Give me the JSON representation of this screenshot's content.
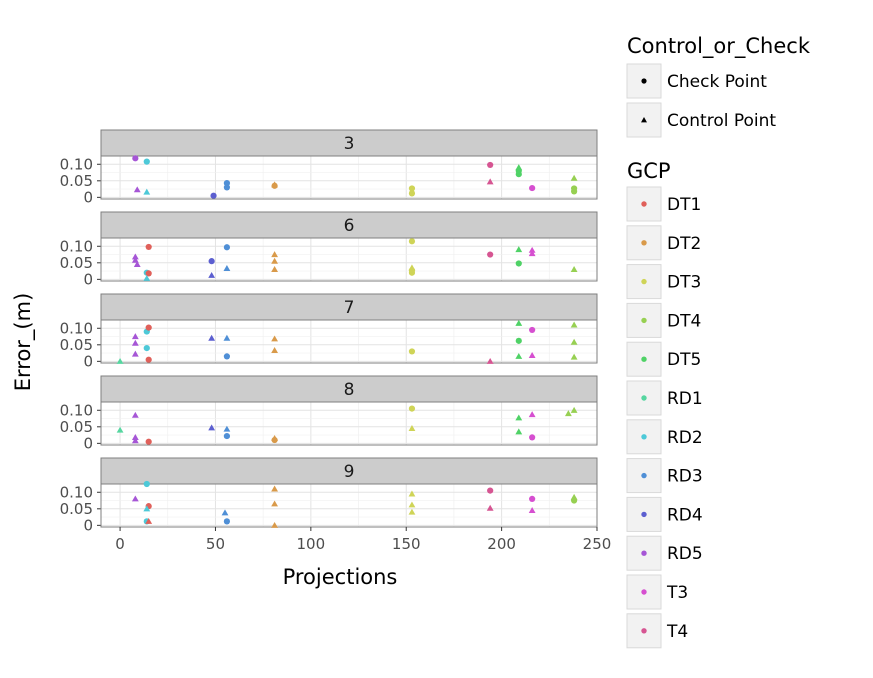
{
  "chart_data": {
    "type": "scatter",
    "facet_by": "GCP",
    "xlabel": "Projections",
    "ylabel": "Error_(m)",
    "xlim": [
      -10,
      250
    ],
    "ylim": [
      -0.005,
      0.125
    ],
    "x_ticks": [
      0,
      50,
      100,
      150,
      200,
      250
    ],
    "y_ticks": [
      0,
      0.05,
      0.1
    ],
    "y_tick_labels": [
      "0",
      "0.05",
      "0.10"
    ],
    "grid": true,
    "legend": {
      "placement": "right",
      "shape_title": "Control_or_Check",
      "shapes": [
        {
          "label": "Check Point",
          "shape": "circle"
        },
        {
          "label": "Control Point",
          "shape": "triangle"
        }
      ],
      "color_title": "GCP",
      "colors": [
        {
          "label": "DT1",
          "color": "#e0605a"
        },
        {
          "label": "DT2",
          "color": "#d99a4a"
        },
        {
          "label": "DT3",
          "color": "#cfd457"
        },
        {
          "label": "DT4",
          "color": "#97d052"
        },
        {
          "label": "DT5",
          "color": "#4fd266"
        },
        {
          "label": "RD1",
          "color": "#56d6a0"
        },
        {
          "label": "RD2",
          "color": "#4dc9d8"
        },
        {
          "label": "RD3",
          "color": "#4f8fd6"
        },
        {
          "label": "RD4",
          "color": "#5c5fd0"
        },
        {
          "label": "RD5",
          "color": "#a656d6"
        },
        {
          "label": "T3",
          "color": "#d64fd0"
        },
        {
          "label": "T4",
          "color": "#d65592"
        }
      ]
    },
    "panels": [
      {
        "label": "3",
        "points": [
          {
            "x": 8,
            "y": 0.118,
            "gcp": "RD5",
            "type": "Check Point"
          },
          {
            "x": 14,
            "y": 0.108,
            "gcp": "RD2",
            "type": "Check Point"
          },
          {
            "x": 9,
            "y": 0.023,
            "gcp": "RD5",
            "type": "Control Point"
          },
          {
            "x": 14,
            "y": 0.016,
            "gcp": "RD2",
            "type": "Control Point"
          },
          {
            "x": 49,
            "y": 0.005,
            "gcp": "RD4",
            "type": "Check Point"
          },
          {
            "x": 56,
            "y": 0.043,
            "gcp": "RD3",
            "type": "Check Point"
          },
          {
            "x": 56,
            "y": 0.03,
            "gcp": "RD3",
            "type": "Check Point"
          },
          {
            "x": 81,
            "y": 0.035,
            "gcp": "DT2",
            "type": "Check Point"
          },
          {
            "x": 81,
            "y": 0.038,
            "gcp": "DT2",
            "type": "Control Point"
          },
          {
            "x": 153,
            "y": 0.027,
            "gcp": "DT3",
            "type": "Check Point"
          },
          {
            "x": 153,
            "y": 0.012,
            "gcp": "DT3",
            "type": "Check Point"
          },
          {
            "x": 194,
            "y": 0.098,
            "gcp": "T4",
            "type": "Check Point"
          },
          {
            "x": 194,
            "y": 0.047,
            "gcp": "T4",
            "type": "Control Point"
          },
          {
            "x": 209,
            "y": 0.09,
            "gcp": "DT5",
            "type": "Control Point"
          },
          {
            "x": 209,
            "y": 0.08,
            "gcp": "DT5",
            "type": "Check Point"
          },
          {
            "x": 209,
            "y": 0.07,
            "gcp": "DT5",
            "type": "Check Point"
          },
          {
            "x": 216,
            "y": 0.028,
            "gcp": "T3",
            "type": "Check Point"
          },
          {
            "x": 238,
            "y": 0.058,
            "gcp": "DT4",
            "type": "Control Point"
          },
          {
            "x": 238,
            "y": 0.027,
            "gcp": "DT4",
            "type": "Check Point"
          },
          {
            "x": 238,
            "y": 0.018,
            "gcp": "DT4",
            "type": "Check Point"
          }
        ]
      },
      {
        "label": "6",
        "points": [
          {
            "x": 8,
            "y": 0.068,
            "gcp": "RD5",
            "type": "Control Point"
          },
          {
            "x": 8,
            "y": 0.058,
            "gcp": "RD5",
            "type": "Control Point"
          },
          {
            "x": 9,
            "y": 0.045,
            "gcp": "RD5",
            "type": "Control Point"
          },
          {
            "x": 15,
            "y": 0.098,
            "gcp": "DT1",
            "type": "Check Point"
          },
          {
            "x": 14,
            "y": 0.02,
            "gcp": "RD2",
            "type": "Check Point"
          },
          {
            "x": 15,
            "y": 0.018,
            "gcp": "DT1",
            "type": "Check Point"
          },
          {
            "x": 14,
            "y": 0.003,
            "gcp": "RD2",
            "type": "Control Point"
          },
          {
            "x": 48,
            "y": 0.055,
            "gcp": "RD4",
            "type": "Check Point"
          },
          {
            "x": 48,
            "y": 0.012,
            "gcp": "RD4",
            "type": "Control Point"
          },
          {
            "x": 56,
            "y": 0.097,
            "gcp": "RD3",
            "type": "Check Point"
          },
          {
            "x": 56,
            "y": 0.033,
            "gcp": "RD3",
            "type": "Control Point"
          },
          {
            "x": 81,
            "y": 0.075,
            "gcp": "DT2",
            "type": "Control Point"
          },
          {
            "x": 81,
            "y": 0.055,
            "gcp": "DT2",
            "type": "Control Point"
          },
          {
            "x": 81,
            "y": 0.03,
            "gcp": "DT2",
            "type": "Control Point"
          },
          {
            "x": 153,
            "y": 0.115,
            "gcp": "DT3",
            "type": "Check Point"
          },
          {
            "x": 153,
            "y": 0.035,
            "gcp": "DT3",
            "type": "Control Point"
          },
          {
            "x": 153,
            "y": 0.027,
            "gcp": "DT3",
            "type": "Check Point"
          },
          {
            "x": 153,
            "y": 0.02,
            "gcp": "DT3",
            "type": "Check Point"
          },
          {
            "x": 194,
            "y": 0.075,
            "gcp": "T4",
            "type": "Check Point"
          },
          {
            "x": 209,
            "y": 0.09,
            "gcp": "DT5",
            "type": "Control Point"
          },
          {
            "x": 209,
            "y": 0.048,
            "gcp": "DT5",
            "type": "Check Point"
          },
          {
            "x": 216,
            "y": 0.088,
            "gcp": "T3",
            "type": "Control Point"
          },
          {
            "x": 216,
            "y": 0.078,
            "gcp": "T3",
            "type": "Control Point"
          },
          {
            "x": 238,
            "y": 0.03,
            "gcp": "DT4",
            "type": "Control Point"
          }
        ]
      },
      {
        "label": "7",
        "points": [
          {
            "x": 0,
            "y": 0.0,
            "gcp": "RD1",
            "type": "Control Point"
          },
          {
            "x": 8,
            "y": 0.075,
            "gcp": "RD5",
            "type": "Control Point"
          },
          {
            "x": 8,
            "y": 0.055,
            "gcp": "RD5",
            "type": "Control Point"
          },
          {
            "x": 8,
            "y": 0.022,
            "gcp": "RD5",
            "type": "Control Point"
          },
          {
            "x": 14,
            "y": 0.09,
            "gcp": "RD2",
            "type": "Check Point"
          },
          {
            "x": 15,
            "y": 0.102,
            "gcp": "DT1",
            "type": "Check Point"
          },
          {
            "x": 14,
            "y": 0.04,
            "gcp": "RD2",
            "type": "Check Point"
          },
          {
            "x": 15,
            "y": 0.005,
            "gcp": "DT1",
            "type": "Check Point"
          },
          {
            "x": 48,
            "y": 0.07,
            "gcp": "RD4",
            "type": "Control Point"
          },
          {
            "x": 56,
            "y": 0.07,
            "gcp": "RD3",
            "type": "Control Point"
          },
          {
            "x": 56,
            "y": 0.015,
            "gcp": "RD3",
            "type": "Check Point"
          },
          {
            "x": 81,
            "y": 0.068,
            "gcp": "DT2",
            "type": "Control Point"
          },
          {
            "x": 81,
            "y": 0.033,
            "gcp": "DT2",
            "type": "Control Point"
          },
          {
            "x": 153,
            "y": 0.03,
            "gcp": "DT3",
            "type": "Check Point"
          },
          {
            "x": 194,
            "y": 0.0,
            "gcp": "T4",
            "type": "Control Point"
          },
          {
            "x": 209,
            "y": 0.115,
            "gcp": "DT5",
            "type": "Control Point"
          },
          {
            "x": 209,
            "y": 0.062,
            "gcp": "DT5",
            "type": "Check Point"
          },
          {
            "x": 209,
            "y": 0.015,
            "gcp": "DT5",
            "type": "Control Point"
          },
          {
            "x": 216,
            "y": 0.095,
            "gcp": "T3",
            "type": "Check Point"
          },
          {
            "x": 216,
            "y": 0.018,
            "gcp": "T3",
            "type": "Control Point"
          },
          {
            "x": 238,
            "y": 0.11,
            "gcp": "DT4",
            "type": "Control Point"
          },
          {
            "x": 238,
            "y": 0.058,
            "gcp": "DT4",
            "type": "Control Point"
          },
          {
            "x": 238,
            "y": 0.013,
            "gcp": "DT4",
            "type": "Control Point"
          }
        ]
      },
      {
        "label": "8",
        "points": [
          {
            "x": 0,
            "y": 0.04,
            "gcp": "RD1",
            "type": "Control Point"
          },
          {
            "x": 8,
            "y": 0.085,
            "gcp": "RD5",
            "type": "Control Point"
          },
          {
            "x": 8,
            "y": 0.018,
            "gcp": "RD5",
            "type": "Control Point"
          },
          {
            "x": 8,
            "y": 0.008,
            "gcp": "RD5",
            "type": "Control Point"
          },
          {
            "x": 15,
            "y": 0.005,
            "gcp": "DT1",
            "type": "Check Point"
          },
          {
            "x": 48,
            "y": 0.047,
            "gcp": "RD4",
            "type": "Control Point"
          },
          {
            "x": 56,
            "y": 0.043,
            "gcp": "RD3",
            "type": "Control Point"
          },
          {
            "x": 56,
            "y": 0.022,
            "gcp": "RD3",
            "type": "Check Point"
          },
          {
            "x": 81,
            "y": 0.015,
            "gcp": "DT2",
            "type": "Control Point"
          },
          {
            "x": 81,
            "y": 0.01,
            "gcp": "DT2",
            "type": "Check Point"
          },
          {
            "x": 153,
            "y": 0.105,
            "gcp": "DT3",
            "type": "Check Point"
          },
          {
            "x": 153,
            "y": 0.045,
            "gcp": "DT3",
            "type": "Control Point"
          },
          {
            "x": 209,
            "y": 0.077,
            "gcp": "DT5",
            "type": "Control Point"
          },
          {
            "x": 209,
            "y": 0.035,
            "gcp": "DT5",
            "type": "Control Point"
          },
          {
            "x": 216,
            "y": 0.087,
            "gcp": "T3",
            "type": "Control Point"
          },
          {
            "x": 216,
            "y": 0.018,
            "gcp": "T3",
            "type": "Check Point"
          },
          {
            "x": 235,
            "y": 0.09,
            "gcp": "DT4",
            "type": "Control Point"
          },
          {
            "x": 238,
            "y": 0.1,
            "gcp": "DT4",
            "type": "Control Point"
          }
        ]
      },
      {
        "label": "9",
        "points": [
          {
            "x": 8,
            "y": 0.08,
            "gcp": "RD5",
            "type": "Control Point"
          },
          {
            "x": 14,
            "y": 0.125,
            "gcp": "RD2",
            "type": "Check Point"
          },
          {
            "x": 15,
            "y": 0.058,
            "gcp": "DT1",
            "type": "Check Point"
          },
          {
            "x": 14,
            "y": 0.05,
            "gcp": "RD2",
            "type": "Control Point"
          },
          {
            "x": 14,
            "y": 0.012,
            "gcp": "RD2",
            "type": "Check Point"
          },
          {
            "x": 15,
            "y": 0.012,
            "gcp": "DT1",
            "type": "Control Point"
          },
          {
            "x": 55,
            "y": 0.038,
            "gcp": "RD3",
            "type": "Control Point"
          },
          {
            "x": 56,
            "y": 0.012,
            "gcp": "RD3",
            "type": "Check Point"
          },
          {
            "x": 81,
            "y": 0.11,
            "gcp": "DT2",
            "type": "Control Point"
          },
          {
            "x": 81,
            "y": 0.065,
            "gcp": "DT2",
            "type": "Control Point"
          },
          {
            "x": 81,
            "y": 0.0,
            "gcp": "DT2",
            "type": "Control Point"
          },
          {
            "x": 153,
            "y": 0.095,
            "gcp": "DT3",
            "type": "Control Point"
          },
          {
            "x": 153,
            "y": 0.062,
            "gcp": "DT3",
            "type": "Control Point"
          },
          {
            "x": 153,
            "y": 0.04,
            "gcp": "DT3",
            "type": "Control Point"
          },
          {
            "x": 194,
            "y": 0.105,
            "gcp": "T4",
            "type": "Check Point"
          },
          {
            "x": 194,
            "y": 0.052,
            "gcp": "T4",
            "type": "Control Point"
          },
          {
            "x": 216,
            "y": 0.08,
            "gcp": "T3",
            "type": "Check Point"
          },
          {
            "x": 216,
            "y": 0.045,
            "gcp": "T3",
            "type": "Control Point"
          },
          {
            "x": 238,
            "y": 0.085,
            "gcp": "DT4",
            "type": "Control Point"
          },
          {
            "x": 238,
            "y": 0.075,
            "gcp": "DT4",
            "type": "Check Point"
          }
        ]
      }
    ]
  }
}
